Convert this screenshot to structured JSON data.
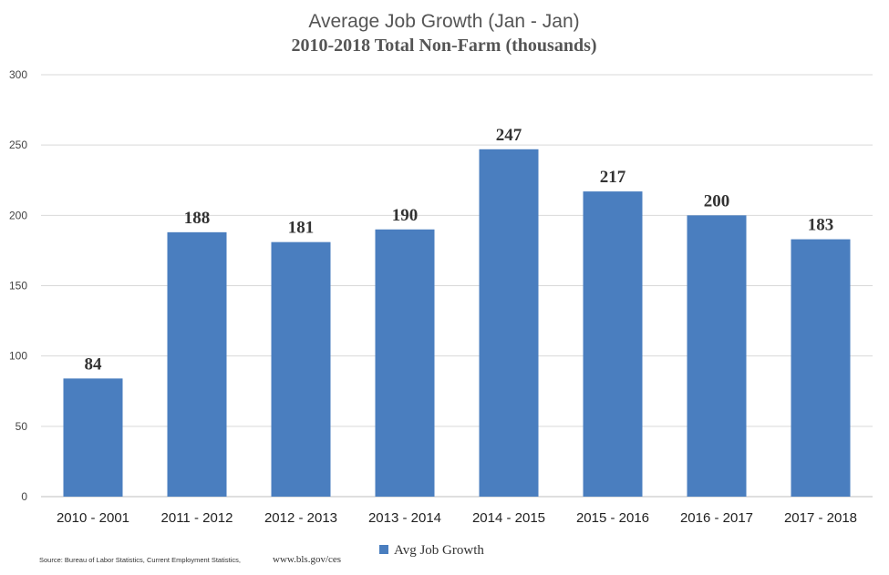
{
  "chart_data": {
    "type": "bar",
    "title": "Average Job Growth (Jan - Jan)",
    "subtitle": "2010-2018 Total Non-Farm (thousands)",
    "categories": [
      "2010 - 2001",
      "2011 - 2012",
      "2012 - 2013",
      "2013 - 2014",
      "2014 - 2015",
      "2015 - 2016",
      "2016 - 2017",
      "2017 - 2018"
    ],
    "series": [
      {
        "name": "Avg Job Growth",
        "values": [
          84,
          188,
          181,
          190,
          247,
          217,
          200,
          183
        ]
      }
    ],
    "ylim": [
      0,
      300
    ],
    "yticks": [
      0,
      50,
      100,
      150,
      200,
      250,
      300
    ],
    "grid": true,
    "legend_position": "bottom",
    "bar_color": "#4a7ebf",
    "grid_color": "#d9d9d9"
  },
  "source": {
    "text": "Source: Bureau of Labor Statistics, Current Employment Statistics,",
    "url": "www.bls.gov/ces"
  }
}
